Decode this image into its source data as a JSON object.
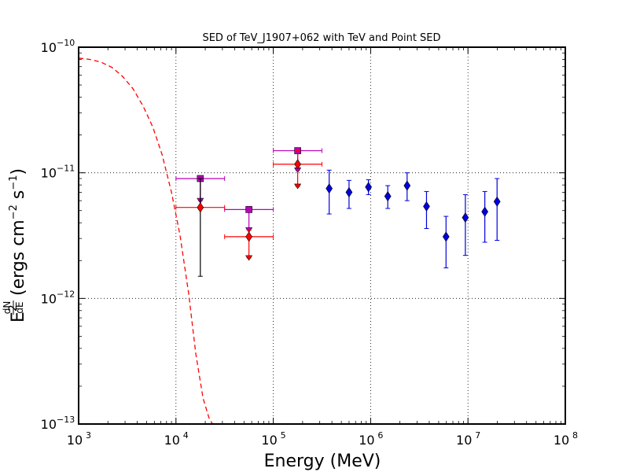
{
  "chart_data": {
    "type": "scatter",
    "title": "SED of TeV_J1907+062 with TeV and Point SED",
    "xlabel": "Energy (MeV)",
    "ylabel": "E^2 dN/dE (ergs cm^-2 s^-1)",
    "ylabel_parts": {
      "E": "E",
      "two": "2",
      "dN": "dN",
      "dE": "dE",
      "unit_open": "(ergs cm",
      "minus2": "−2",
      "s": " s",
      "minus1": "−1",
      "close": ")"
    },
    "xscale": "log",
    "yscale": "log",
    "xlim": [
      1000,
      100000000
    ],
    "ylim": [
      1e-13,
      1e-10
    ],
    "grid": true,
    "x_ticks": [
      {
        "value": 1000,
        "base": "10",
        "exp": "3"
      },
      {
        "value": 10000,
        "base": "10",
        "exp": "4"
      },
      {
        "value": 100000,
        "base": "10",
        "exp": "5"
      },
      {
        "value": 1000000,
        "base": "10",
        "exp": "6"
      },
      {
        "value": 10000000,
        "base": "10",
        "exp": "7"
      },
      {
        "value": 100000000,
        "base": "10",
        "exp": "8"
      }
    ],
    "y_ticks": [
      {
        "value": 1e-13,
        "base": "10",
        "exp": "−13"
      },
      {
        "value": 1e-12,
        "base": "10",
        "exp": "−12"
      },
      {
        "value": 1e-11,
        "base": "10",
        "exp": "−11"
      },
      {
        "value": 1e-10,
        "base": "10",
        "exp": "−10"
      }
    ],
    "series": [
      {
        "type": "line",
        "style": "dashed",
        "color": "#ff0000",
        "x": [
          1000,
          1300,
          1700,
          2200,
          2800,
          3600,
          4600,
          5800,
          7200,
          9000,
          11000,
          13500,
          16000,
          19000,
          22000,
          23800
        ],
        "y": [
          8.2e-11,
          8e-11,
          7.6e-11,
          6.9e-11,
          5.9e-11,
          4.7e-11,
          3.4e-11,
          2.3e-11,
          1.4e-11,
          7e-12,
          3.2e-12,
          1.1e-12,
          3.6e-13,
          1.6e-13,
          1.1e-13,
          1e-13
        ]
      },
      {
        "type": "errorbar",
        "marker": "square",
        "color": "#bb00bb",
        "points": [
          {
            "x": 17800,
            "y": 9e-12,
            "xerr": [
              10000,
              31600
            ],
            "yerr": [
              6e-12,
              9e-12
            ]
          },
          {
            "x": 56200,
            "y": 5.1e-12,
            "xerr": [
              31600,
              100000
            ],
            "yerr": [
              3.5e-12,
              5.1e-12
            ]
          },
          {
            "x": 178000,
            "y": 1.5e-11,
            "xerr": [
              100000,
              316000
            ],
            "yerr": [
              1.05e-11,
              1.5e-11
            ]
          }
        ]
      },
      {
        "type": "upper_limit",
        "marker": "triangle-down",
        "color": "#bb00bb",
        "points": [
          {
            "x": 17800,
            "y": 6e-12
          },
          {
            "x": 56200,
            "y": 3.5e-12
          },
          {
            "x": 178000,
            "y": 1.05e-11
          }
        ]
      },
      {
        "type": "errorbar",
        "marker": "diamond",
        "color": "#ff0000",
        "points": [
          {
            "x": 17800,
            "y": 5.3e-12,
            "xerr": [
              10000,
              31600
            ],
            "yerr": [
              1.5e-12,
              9e-12
            ],
            "yerr_color": "#000000"
          },
          {
            "x": 56200,
            "y": 3.1e-12,
            "xerr": [
              31600,
              100000
            ],
            "yerr": [
              2.1e-12,
              3.5e-12
            ]
          },
          {
            "x": 178000,
            "y": 1.17e-11,
            "xerr": [
              100000,
              316000
            ],
            "yerr": [
              7.8e-12,
              1.5e-11
            ]
          }
        ]
      },
      {
        "type": "upper_limit",
        "marker": "triangle-down",
        "color": "#ff0000",
        "points": [
          {
            "x": 56200,
            "y": 2.1e-12
          },
          {
            "x": 178000,
            "y": 7.8e-12
          }
        ]
      },
      {
        "type": "errorbar",
        "marker": "diamond",
        "color": "#0000dd",
        "points": [
          {
            "x": 375000,
            "y": 7.5e-12,
            "yerr": [
              4.7e-12,
              1.05e-11
            ]
          },
          {
            "x": 600000,
            "y": 7e-12,
            "yerr": [
              5.2e-12,
              8.7e-12
            ]
          },
          {
            "x": 950000,
            "y": 7.7e-12,
            "yerr": [
              6.7e-12,
              8.8e-12
            ]
          },
          {
            "x": 1500000,
            "y": 6.5e-12,
            "yerr": [
              5.2e-12,
              7.9e-12
            ]
          },
          {
            "x": 2370000,
            "y": 7.9e-12,
            "yerr": [
              6e-12,
              1e-11
            ]
          },
          {
            "x": 3750000,
            "y": 5.4e-12,
            "yerr": [
              3.6e-12,
              7.1e-12
            ]
          },
          {
            "x": 5950000,
            "y": 3.1e-12,
            "yerr": [
              1.75e-12,
              4.5e-12
            ]
          },
          {
            "x": 9400000,
            "y": 4.4e-12,
            "yerr": [
              2.2e-12,
              6.7e-12
            ]
          },
          {
            "x": 14900000,
            "y": 4.9e-12,
            "yerr": [
              2.8e-12,
              7.1e-12
            ]
          },
          {
            "x": 19900000,
            "y": 5.9e-12,
            "yerr": [
              2.9e-12,
              9e-12
            ]
          }
        ]
      }
    ]
  }
}
